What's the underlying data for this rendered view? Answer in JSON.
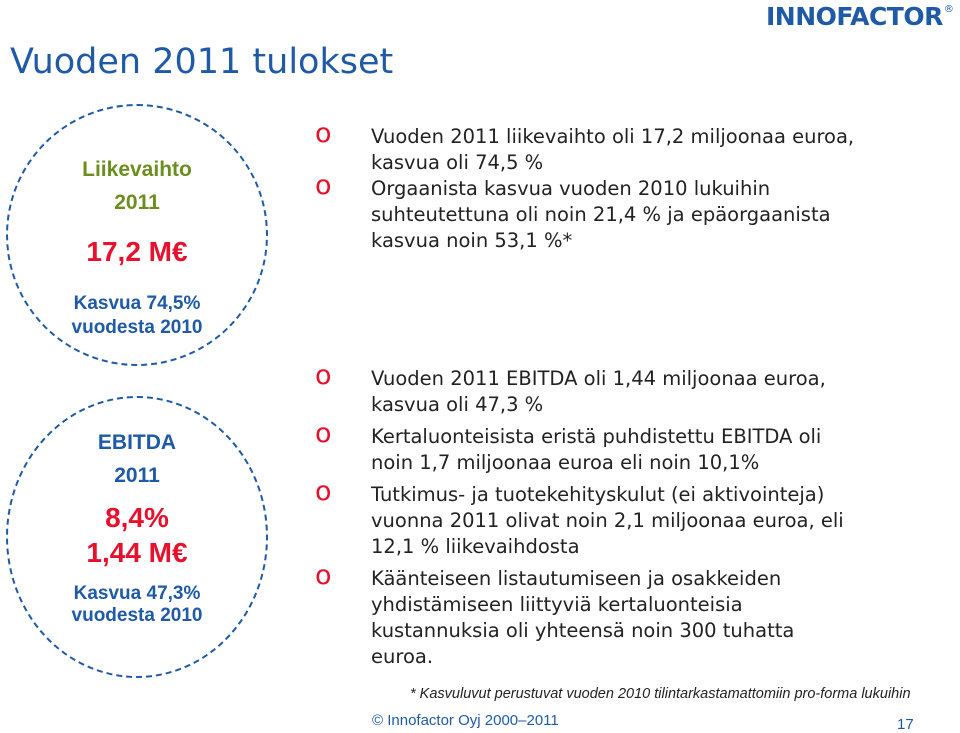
{
  "logo": {
    "text": "INNOFACTOR",
    "mark": "®"
  },
  "title": "Vuoden 2011 tulokset",
  "circle1": {
    "label1": "Liikevaihto",
    "label2": "2011",
    "value": "17,2 M€",
    "growth1": "Kasvua 74,5%",
    "growth2": "vuodesta 2010"
  },
  "circle2": {
    "label1": "EBITDA",
    "label2": "2011",
    "value1": "8,4%",
    "value2": "1,44 M€",
    "growth1": "Kasvua 47,3%",
    "growth2": "vuodesta 2010"
  },
  "bullet_marker": "o",
  "bullets_top": [
    "Vuoden 2011 liikevaihto oli 17,2 miljoonaa euroa, kasvua oli 74,5 %",
    "Orgaanista kasvua vuoden 2010 lukuihin suhteutettuna oli noin 21,4 % ja epäorgaanista kasvua noin 53,1 %*"
  ],
  "bullets_bottom": [
    "Vuoden 2011 EBITDA oli 1,44 miljoonaa euroa, kasvua oli 47,3 %",
    "Kertaluonteisista eristä puhdistettu EBITDA oli noin 1,7 miljoonaa euroa eli noin 10,1%",
    "Tutkimus- ja tuotekehityskulut (ei aktivointeja) vuonna 2011 olivat noin 2,1 miljoonaa euroa, eli 12,1 % liikevaihdosta",
    "Käänteiseen listautumiseen ja osakkeiden yhdistämiseen liittyviä kertaluonteisia kustannuksia oli yhteensä noin 300 tuhatta euroa."
  ],
  "footnote": "* Kasvuluvut perustuvat vuoden 2010 tilintarkastamattomiin pro-forma lukuihin",
  "copyright": "© Innofactor  Oyj 2000–2011",
  "page_number": "17",
  "colors": {
    "blue": "#1f5aa6",
    "red": "#e8112d",
    "green": "#6b8e1f"
  }
}
